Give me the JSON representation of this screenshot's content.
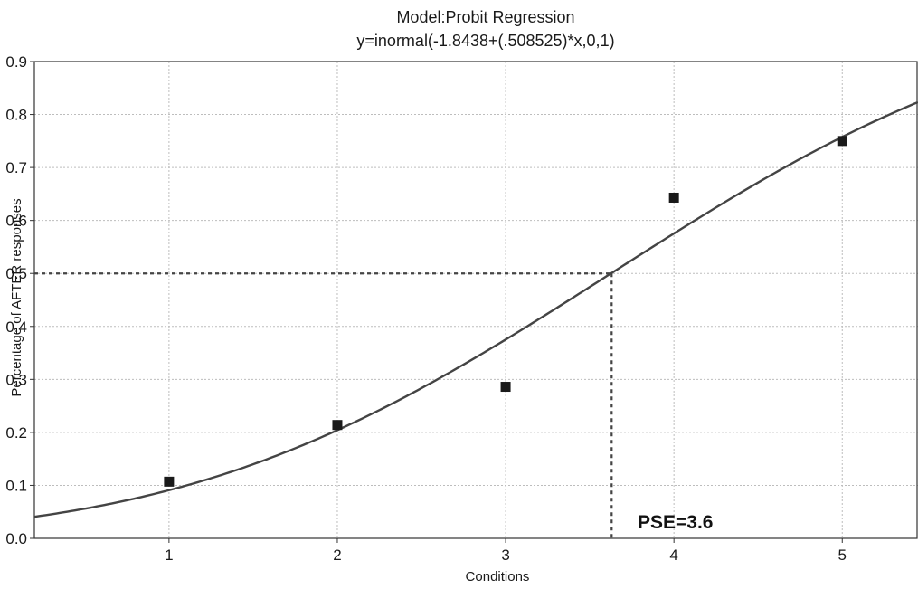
{
  "chart_data": {
    "type": "scatter",
    "title": "Model:Probit Regression",
    "subtitle": "y=inormal(-1.8438+(.508525)*x,0,1)",
    "xlabel": "Conditions",
    "ylabel": "Percentage of AFTER responses",
    "xlim": [
      0.2,
      5.45
    ],
    "ylim": [
      0.0,
      0.9
    ],
    "x_ticks": [
      "1",
      "2",
      "3",
      "4",
      "5"
    ],
    "y_ticks": [
      "0.0",
      "0.1",
      "0.2",
      "0.3",
      "0.4",
      "0.5",
      "0.6",
      "0.7",
      "0.8",
      "0.9"
    ],
    "grid": true,
    "points": [
      {
        "x": 1,
        "y": 0.107
      },
      {
        "x": 2,
        "y": 0.214
      },
      {
        "x": 3,
        "y": 0.286
      },
      {
        "x": 4,
        "y": 0.643
      },
      {
        "x": 5,
        "y": 0.75
      }
    ],
    "fit": {
      "intercept": -1.8438,
      "slope": 0.508525
    },
    "threshold": {
      "x": 3.63,
      "y": 0.5
    },
    "annotation": "PSE=3.6",
    "colors": {
      "curve": "#444444",
      "marker": "#1a1a1a",
      "grid": "#bdbdbd",
      "dashed": "#444444"
    }
  }
}
